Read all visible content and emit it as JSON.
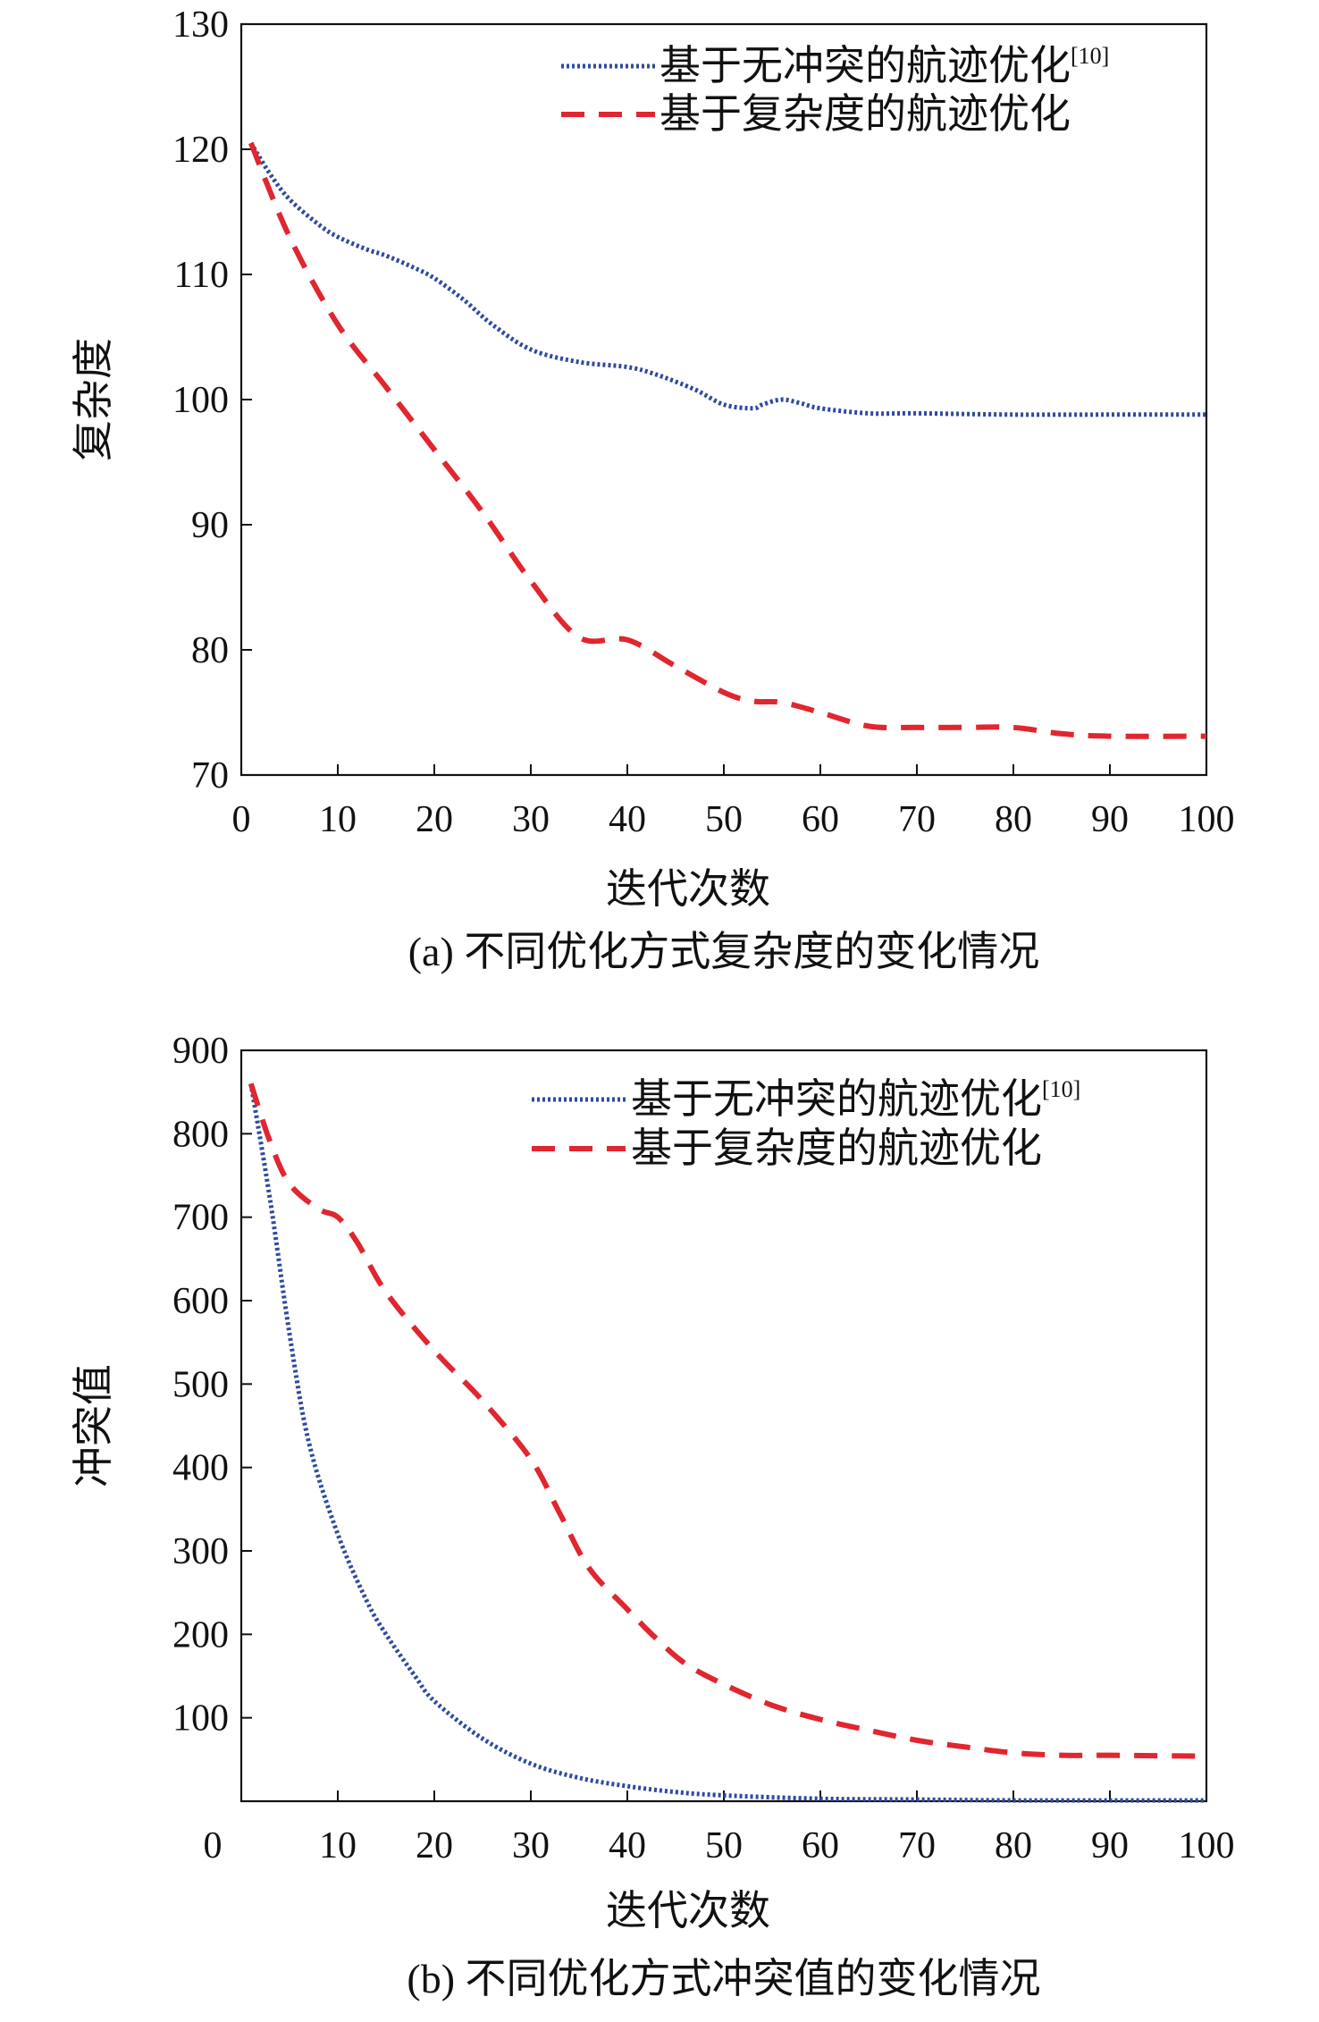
{
  "figures": [
    {
      "caption": "(a) 不同优化方式复杂度的变化情况",
      "chart_data": {
        "type": "line",
        "xlabel": "迭代次数",
        "ylabel": "复杂度",
        "xlim": [
          0,
          100
        ],
        "ylim": [
          70,
          130
        ],
        "xticks": [
          0,
          10,
          20,
          30,
          40,
          50,
          60,
          70,
          80,
          90,
          100
        ],
        "yticks": [
          70,
          80,
          90,
          100,
          110,
          120,
          130
        ],
        "grid": false,
        "legend_position": "top-right",
        "series": [
          {
            "name": "基于无冲突的航迹优化",
            "name_sup": "[10]",
            "color": "#2E4A9E",
            "style": "dotted",
            "x": [
              1,
              3,
              5,
              8,
              10,
              13,
              15,
              18,
              20,
              23,
              26,
              30,
              35,
              40,
              43,
              47,
              50,
              53,
              54,
              56,
              58,
              60,
              65,
              70,
              80,
              90,
              100
            ],
            "y": [
              120.5,
              118,
              116,
              114,
              113,
              112,
              111.5,
              110.5,
              109.7,
              108,
              106,
              104,
              103,
              102.6,
              102,
              100.8,
              99.6,
              99.3,
              99.6,
              100,
              99.7,
              99.3,
              98.9,
              98.9,
              98.8,
              98.8,
              98.8
            ]
          },
          {
            "name": "基于复杂度的航迹优化",
            "color": "#E0262F",
            "style": "dashed",
            "x": [
              1,
              5,
              10,
              15,
              20,
              25,
              30,
              35,
              40,
              45,
              50,
              53,
              56,
              60,
              65,
              70,
              75,
              80,
              85,
              90,
              100
            ],
            "y": [
              120.5,
              113,
              106,
              101,
              96,
              91,
              85.5,
              81,
              80.8,
              78.7,
              76.6,
              75.9,
              75.8,
              75,
              73.9,
              73.8,
              73.8,
              73.8,
              73.3,
              73.1,
              73.1
            ]
          }
        ]
      }
    },
    {
      "caption": "(b) 不同优化方式冲突值的变化情况",
      "chart_data": {
        "type": "line",
        "xlabel": "迭代次数",
        "ylabel": "冲突值",
        "xlim": [
          0,
          100
        ],
        "ylim": [
          0,
          900
        ],
        "xticks": [
          0,
          10,
          20,
          30,
          40,
          50,
          60,
          70,
          80,
          90,
          100
        ],
        "yticks": [
          100,
          200,
          300,
          400,
          500,
          600,
          700,
          800,
          900
        ],
        "grid": false,
        "legend_position": "top-right",
        "series": [
          {
            "name": "基于无冲突的航迹优化",
            "name_sup": "[10]",
            "color": "#2E4A9E",
            "style": "dotted",
            "x": [
              1,
              3,
              5,
              7,
              10,
              13,
              15,
              18,
              20,
              25,
              30,
              35,
              40,
              45,
              50,
              60,
              70,
              80,
              90,
              100
            ],
            "y": [
              860,
              720,
              560,
              430,
              320,
              240,
              200,
              150,
              120,
              75,
              45,
              28,
              18,
              11,
              7,
              3,
              2,
              1,
              1,
              1
            ]
          },
          {
            "name": "基于复杂度的航迹优化",
            "color": "#E0262F",
            "style": "dashed",
            "x": [
              1,
              3,
              5,
              8,
              10,
              12,
              15,
              20,
              25,
              30,
              33,
              36,
              40,
              43,
              46,
              50,
              55,
              60,
              65,
              70,
              75,
              80,
              85,
              90,
              100
            ],
            "y": [
              860,
              790,
              740,
              710,
              700,
              670,
              610,
              540,
              480,
              410,
              345,
              280,
              230,
              195,
              165,
              140,
              115,
              98,
              85,
              73,
              65,
              58,
              55,
              55,
              54
            ]
          }
        ]
      }
    }
  ]
}
